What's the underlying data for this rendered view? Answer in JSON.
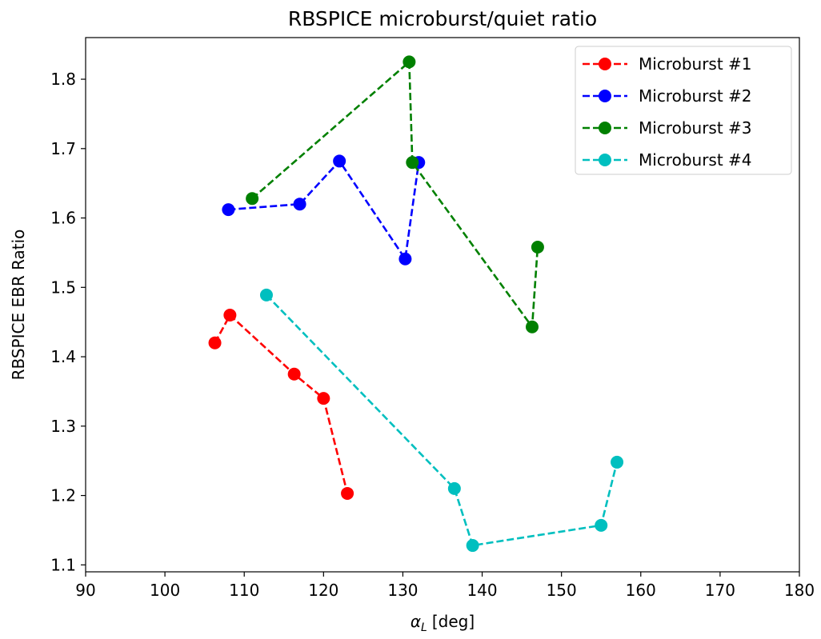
{
  "chart_data": {
    "type": "line",
    "title": "RBSPICE microburst/quiet ratio",
    "xlabel_symbol": "α",
    "xlabel_subscript": "L",
    "xlabel_unit": "[deg]",
    "ylabel": "RBSPICE EBR Ratio",
    "xlim": [
      90,
      180
    ],
    "ylim": [
      1.09,
      1.86
    ],
    "xticks": [
      "90",
      "100",
      "110",
      "120",
      "130",
      "140",
      "150",
      "160",
      "170",
      "180"
    ],
    "yticks": [
      "1.1",
      "1.2",
      "1.3",
      "1.4",
      "1.5",
      "1.6",
      "1.7",
      "1.8"
    ],
    "grid": false,
    "legend_position": "top-right",
    "line_style": "dashed",
    "series": [
      {
        "name": "Microburst #1",
        "color": "#ff0000",
        "x": [
          106.3,
          108.2,
          116.3,
          120.0,
          123.0
        ],
        "y": [
          1.42,
          1.46,
          1.375,
          1.34,
          1.203
        ]
      },
      {
        "name": "Microburst #2",
        "color": "#0000ff",
        "x": [
          108.0,
          117.0,
          122.0,
          130.3,
          132.0
        ],
        "y": [
          1.612,
          1.62,
          1.682,
          1.541,
          1.68
        ]
      },
      {
        "name": "Microburst #3",
        "color": "#008000",
        "x": [
          111.0,
          130.8,
          131.2,
          146.3,
          147.0
        ],
        "y": [
          1.628,
          1.825,
          1.68,
          1.443,
          1.558
        ]
      },
      {
        "name": "Microburst #4",
        "color": "#00bfbf",
        "x": [
          112.8,
          136.5,
          138.8,
          155.0,
          157.0
        ],
        "y": [
          1.489,
          1.21,
          1.128,
          1.157,
          1.248
        ]
      }
    ]
  }
}
